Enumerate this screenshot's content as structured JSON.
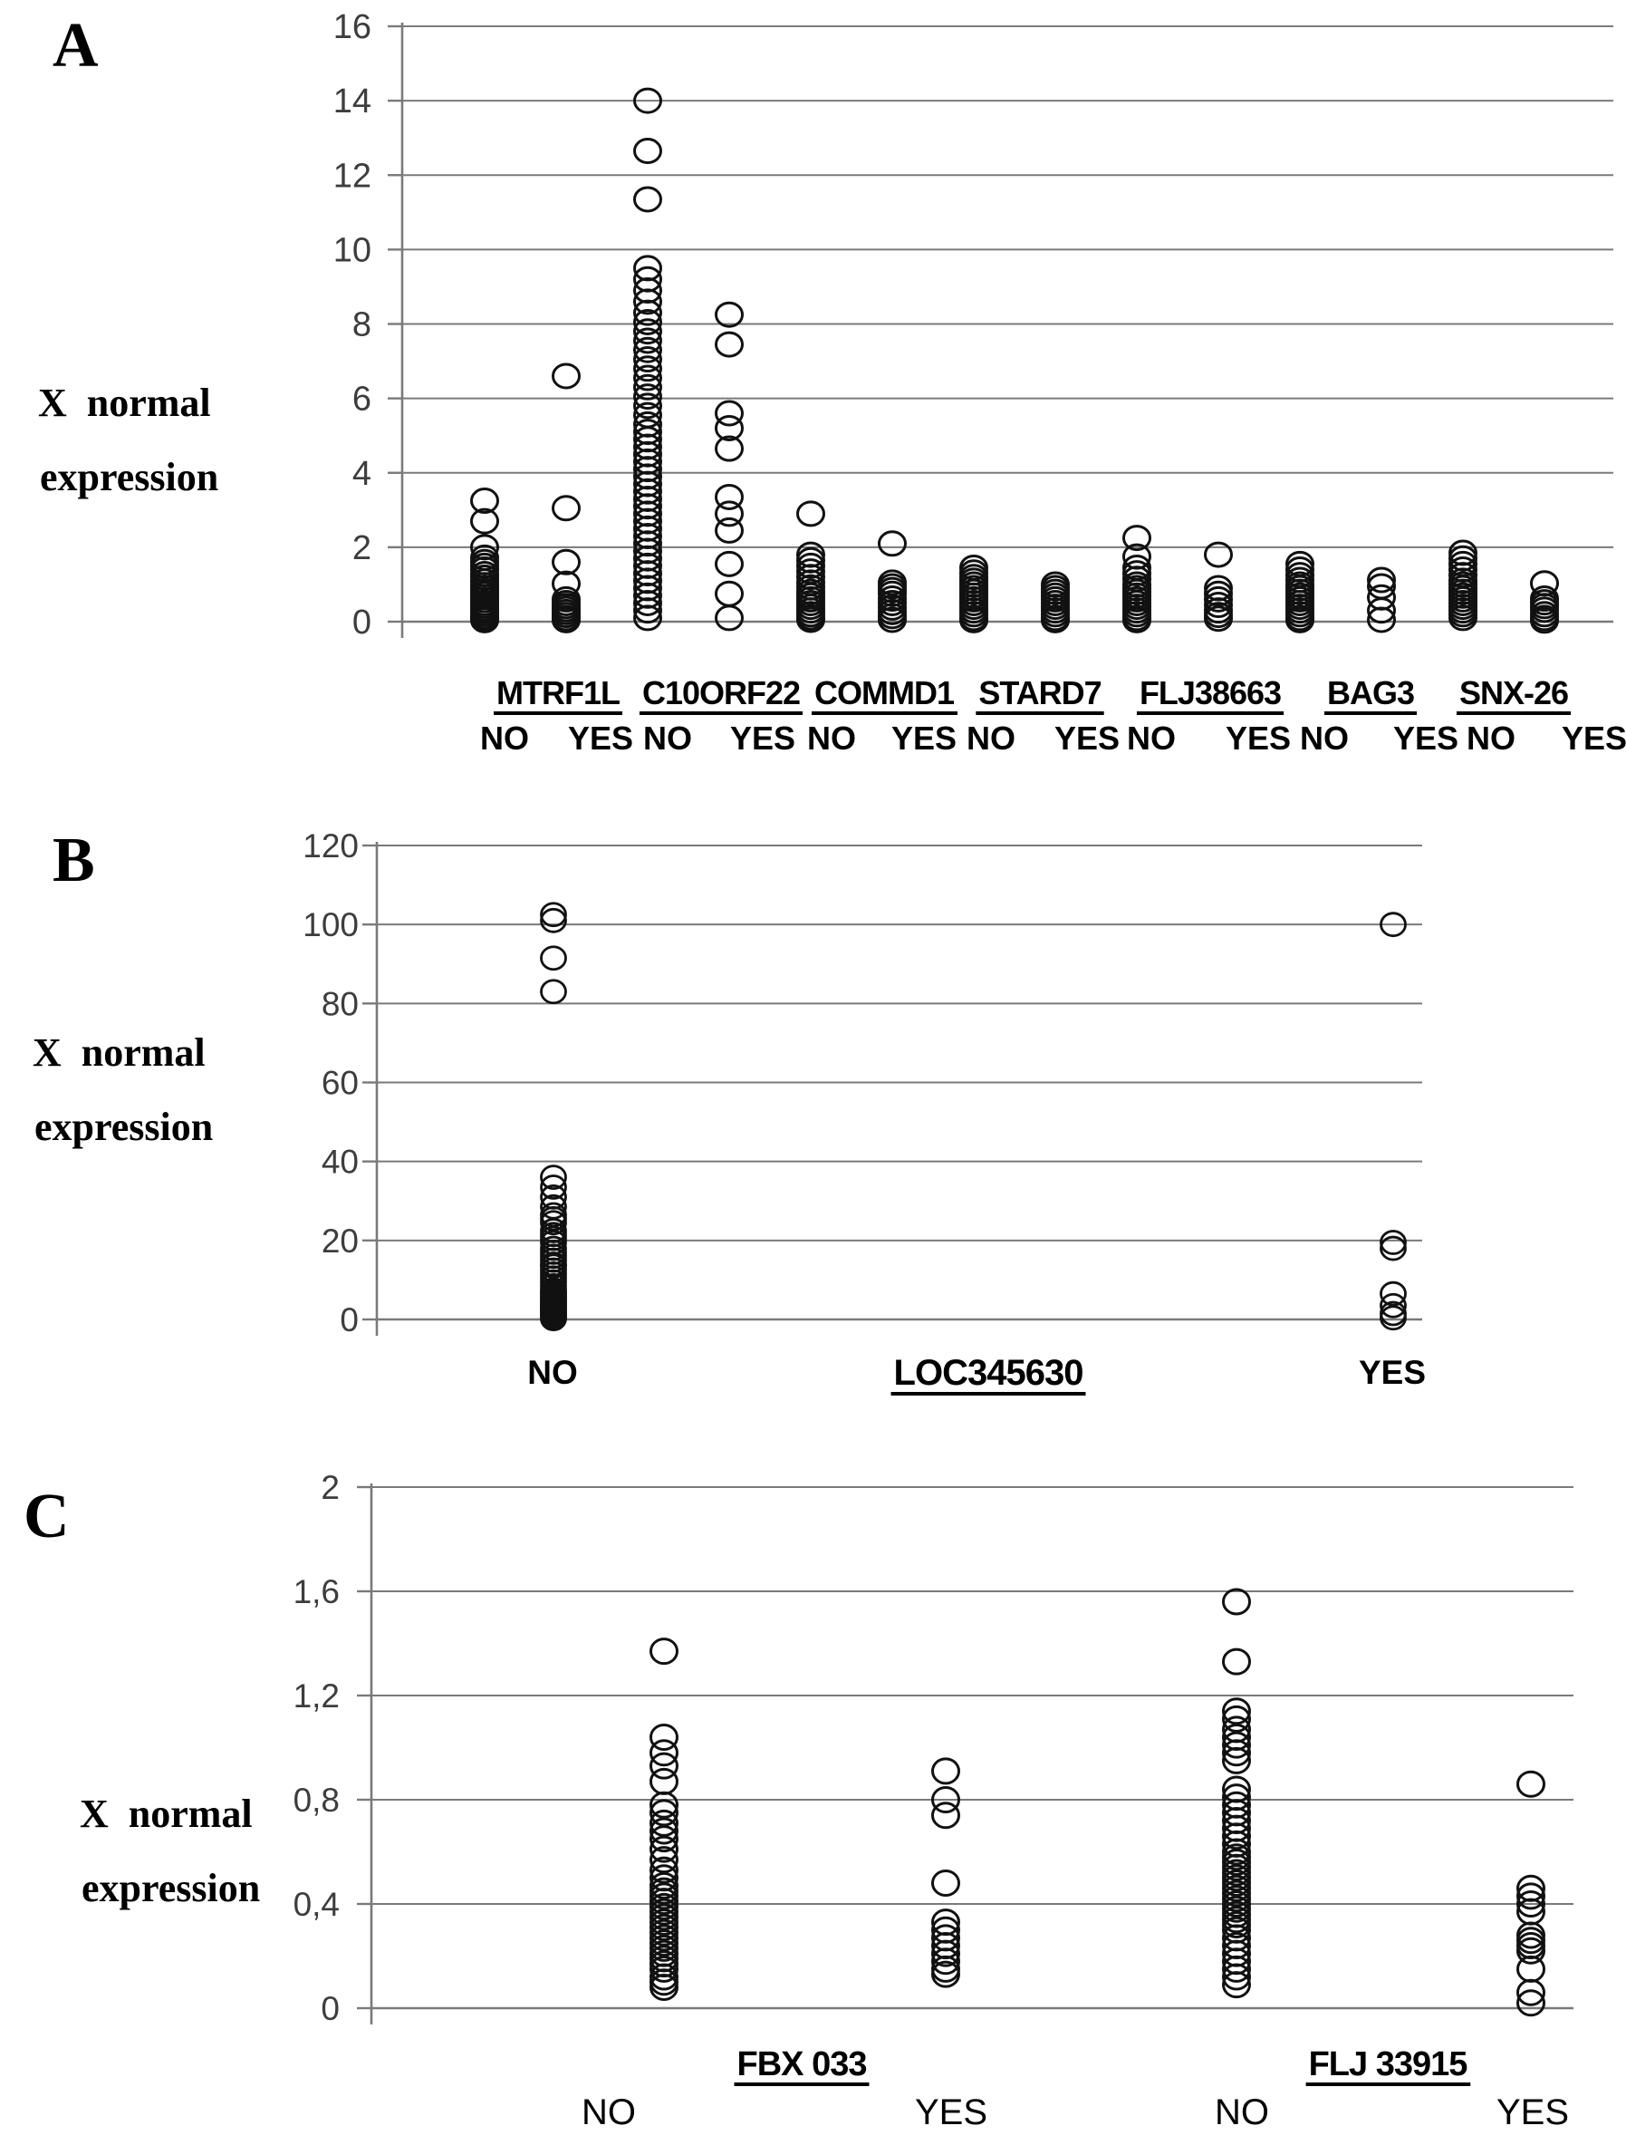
{
  "figure": {
    "panels": [
      {
        "letter": "A",
        "y_title_line1": "X  normal",
        "y_title_line2": "expression"
      },
      {
        "letter": "B",
        "y_title_line1": "X  normal",
        "y_title_line2": "expression"
      },
      {
        "letter": "C",
        "y_title_line1": "X  normal",
        "y_title_line2": "expression"
      }
    ]
  },
  "chart_data": [
    {
      "type": "scatter",
      "panel": "A",
      "title": "",
      "ylabel": "X normal expression",
      "ylim": [
        0,
        16
      ],
      "yticks": [
        "0",
        "2",
        "4",
        "6",
        "8",
        "10",
        "12",
        "14",
        "16"
      ],
      "grid": true,
      "marker": "open-circle",
      "groups": [
        {
          "gene": "MTRF1L",
          "series": [
            {
              "label": "NO",
              "values": [
                3.25,
                2.7,
                2.0,
                1.72,
                1.6,
                1.5,
                1.4,
                1.28,
                1.18,
                1.08,
                0.98,
                0.9,
                0.82,
                0.74,
                0.66,
                0.58,
                0.5,
                0.43,
                0.36,
                0.29,
                0.22,
                0.15,
                0.09,
                0.04
              ]
            },
            {
              "label": "YES",
              "values": [
                6.6,
                3.05,
                1.6,
                1.02,
                0.6,
                0.5,
                0.42,
                0.34,
                0.26,
                0.18,
                0.1,
                0.04
              ]
            }
          ]
        },
        {
          "gene": "C10ORF22",
          "series": [
            {
              "label": "NO",
              "values": [
                14.0,
                12.65,
                11.35,
                9.5,
                9.2,
                8.9,
                8.6,
                8.3,
                8.05,
                7.8,
                7.55,
                7.3,
                7.05,
                6.8,
                6.55,
                6.3,
                6.05,
                5.8,
                5.55,
                5.3,
                5.1,
                4.9,
                4.7,
                4.5,
                4.3,
                4.1,
                3.9,
                3.7,
                3.5,
                3.3,
                3.1,
                2.9,
                2.7,
                2.5,
                2.3,
                2.1,
                1.9,
                1.7,
                1.5,
                1.3,
                1.1,
                0.9,
                0.7,
                0.5,
                0.3,
                0.1
              ]
            },
            {
              "label": "YES",
              "values": [
                8.25,
                7.45,
                5.6,
                5.2,
                4.65,
                3.35,
                2.9,
                2.45,
                1.55,
                0.75,
                0.1
              ]
            }
          ]
        },
        {
          "gene": "COMMD1",
          "series": [
            {
              "label": "NO",
              "values": [
                2.9,
                1.8,
                1.65,
                1.5,
                1.35,
                1.2,
                1.05,
                0.92,
                0.8,
                0.7,
                0.6,
                0.5,
                0.4,
                0.3,
                0.2,
                0.12,
                0.05
              ]
            },
            {
              "label": "YES",
              "values": [
                2.1,
                1.05,
                0.95,
                0.85,
                0.75,
                0.62,
                0.5,
                0.38,
                0.26,
                0.15,
                0.05
              ]
            }
          ]
        },
        {
          "gene": "STARD7",
          "series": [
            {
              "label": "NO",
              "values": [
                1.45,
                1.32,
                1.2,
                1.1,
                1.0,
                0.9,
                0.8,
                0.7,
                0.6,
                0.5,
                0.4,
                0.3,
                0.2,
                0.1,
                0.04
              ]
            },
            {
              "label": "YES",
              "values": [
                1.0,
                0.9,
                0.8,
                0.7,
                0.6,
                0.5,
                0.4,
                0.3,
                0.2,
                0.1,
                0.04
              ]
            }
          ]
        },
        {
          "gene": "FLJ38663",
          "series": [
            {
              "label": "NO",
              "values": [
                2.25,
                1.75,
                1.45,
                1.3,
                1.15,
                1.0,
                0.9,
                0.8,
                0.7,
                0.6,
                0.5,
                0.4,
                0.3,
                0.2,
                0.1,
                0.04
              ]
            },
            {
              "label": "YES",
              "values": [
                1.8,
                0.9,
                0.75,
                0.6,
                0.45,
                0.3,
                0.18,
                0.08
              ]
            }
          ]
        },
        {
          "gene": "BAG3",
          "series": [
            {
              "label": "NO",
              "values": [
                1.55,
                1.4,
                1.25,
                1.12,
                1.0,
                0.9,
                0.8,
                0.7,
                0.6,
                0.5,
                0.4,
                0.3,
                0.2,
                0.1,
                0.04
              ]
            },
            {
              "label": "YES",
              "values": [
                1.12,
                0.95,
                0.65,
                0.3,
                0.05
              ]
            }
          ]
        },
        {
          "gene": "SNX-26",
          "series": [
            {
              "label": "NO",
              "values": [
                1.85,
                1.7,
                1.55,
                1.4,
                1.25,
                1.1,
                1.0,
                0.9,
                0.8,
                0.7,
                0.6,
                0.5,
                0.4,
                0.3,
                0.2,
                0.1
              ]
            },
            {
              "label": "YES",
              "values": [
                1.03,
                0.62,
                0.52,
                0.42,
                0.32,
                0.2,
                0.1,
                0.03
              ]
            }
          ]
        }
      ]
    },
    {
      "type": "scatter",
      "panel": "B",
      "title": "",
      "ylabel": "X normal expression",
      "ylim": [
        0,
        120
      ],
      "yticks": [
        "0",
        "20",
        "40",
        "60",
        "80",
        "100",
        "120"
      ],
      "grid": true,
      "marker": "open-circle",
      "groups": [
        {
          "gene": "LOC345630",
          "series": [
            {
              "label": "NO",
              "values": [
                102.5,
                101,
                91.5,
                83,
                36,
                33.5,
                31,
                28.5,
                26.5,
                25.5,
                24.5,
                22.5,
                21.5,
                20.5,
                19.5,
                18,
                17,
                16,
                15,
                14,
                13.5,
                12.5,
                11.5,
                10.5,
                9.5,
                8.5,
                7.5,
                7,
                6.5,
                6,
                5.5,
                5,
                4.5,
                4,
                3.5,
                3,
                2.6,
                2.2,
                1.8,
                1.4,
                1.0,
                0.6,
                0.2
              ]
            },
            {
              "label": "YES",
              "values": [
                100,
                19.5,
                18,
                6.5,
                3.5,
                1.5,
                0.4
              ]
            }
          ]
        }
      ]
    },
    {
      "type": "scatter",
      "panel": "C",
      "title": "",
      "ylabel": "X normal expression",
      "ylim": [
        0,
        2
      ],
      "yticks": [
        "0",
        "0,4",
        "0,8",
        "1,2",
        "1,6",
        "2"
      ],
      "grid": true,
      "marker": "open-circle",
      "groups": [
        {
          "gene": "FBX 033",
          "series": [
            {
              "label": "NO",
              "values": [
                1.37,
                1.04,
                0.98,
                0.93,
                0.87,
                0.78,
                0.75,
                0.71,
                0.68,
                0.65,
                0.61,
                0.57,
                0.53,
                0.5,
                0.47,
                0.45,
                0.43,
                0.41,
                0.39,
                0.37,
                0.35,
                0.33,
                0.31,
                0.29,
                0.27,
                0.25,
                0.23,
                0.21,
                0.19,
                0.17,
                0.15,
                0.12,
                0.1,
                0.08
              ]
            },
            {
              "label": "YES",
              "values": [
                0.91,
                0.8,
                0.74,
                0.48,
                0.33,
                0.3,
                0.27,
                0.24,
                0.21,
                0.18,
                0.15,
                0.13
              ]
            }
          ]
        },
        {
          "gene": "FLJ 33915",
          "series": [
            {
              "label": "NO",
              "values": [
                1.56,
                1.33,
                1.14,
                1.11,
                1.07,
                1.04,
                1.01,
                0.98,
                0.95,
                0.84,
                0.81,
                0.78,
                0.75,
                0.72,
                0.69,
                0.66,
                0.63,
                0.6,
                0.58,
                0.56,
                0.54,
                0.52,
                0.5,
                0.48,
                0.46,
                0.44,
                0.42,
                0.4,
                0.38,
                0.36,
                0.34,
                0.32,
                0.3,
                0.27,
                0.24,
                0.21,
                0.18,
                0.15,
                0.12,
                0.09
              ]
            },
            {
              "label": "YES",
              "values": [
                0.86,
                0.46,
                0.43,
                0.4,
                0.37,
                0.28,
                0.26,
                0.24,
                0.22,
                0.15,
                0.06,
                0.02
              ]
            }
          ]
        }
      ]
    }
  ]
}
